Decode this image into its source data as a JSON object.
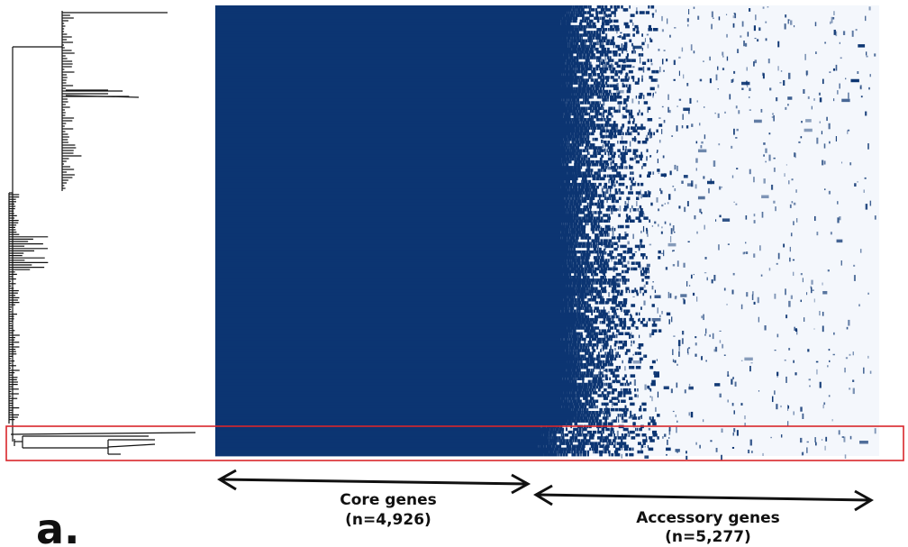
{
  "panel_label": "a.",
  "chart_data": {
    "type": "heatmap",
    "description_rows": "bacterial isolates ordered by phylogenetic tree",
    "description_cols": "genes ordered by frequency",
    "core_label": "Core genes",
    "core_count": "(n=4,926)",
    "accessory_label": "Accessory genes",
    "accessory_count": "(n=5,277)",
    "core_genes": 4926,
    "accessory_genes": 5277,
    "colors": {
      "present": "#0c3572",
      "absent": "#f4f7fc",
      "highlight_box": "#d9262b",
      "tree": "#111111"
    },
    "highlighted_clade": "bottom outlier clade (boxed)"
  }
}
